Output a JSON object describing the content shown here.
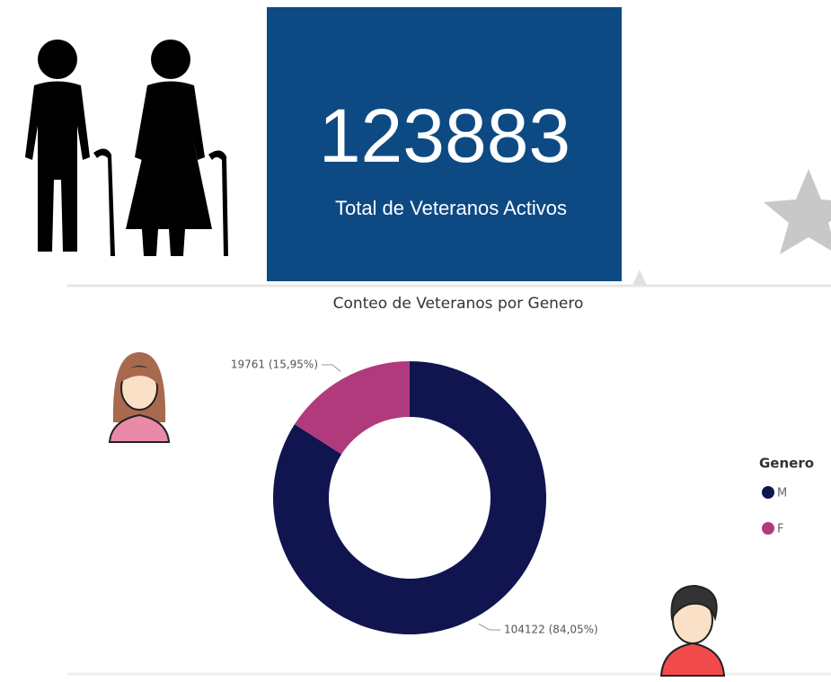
{
  "kpi": {
    "value": "123883",
    "label": "Total de Veteranos Activos"
  },
  "chart_data": {
    "type": "pie",
    "title": "Conteo de Veteranos por Genero",
    "categories": [
      "M",
      "F"
    ],
    "values": [
      104122,
      19761
    ],
    "value_labels": [
      "104122 (84,05%)",
      "19761 (15,95%)"
    ],
    "colors": [
      "#10154f",
      "#b13a7c"
    ],
    "legend_title": "Genero",
    "donut": true
  }
}
